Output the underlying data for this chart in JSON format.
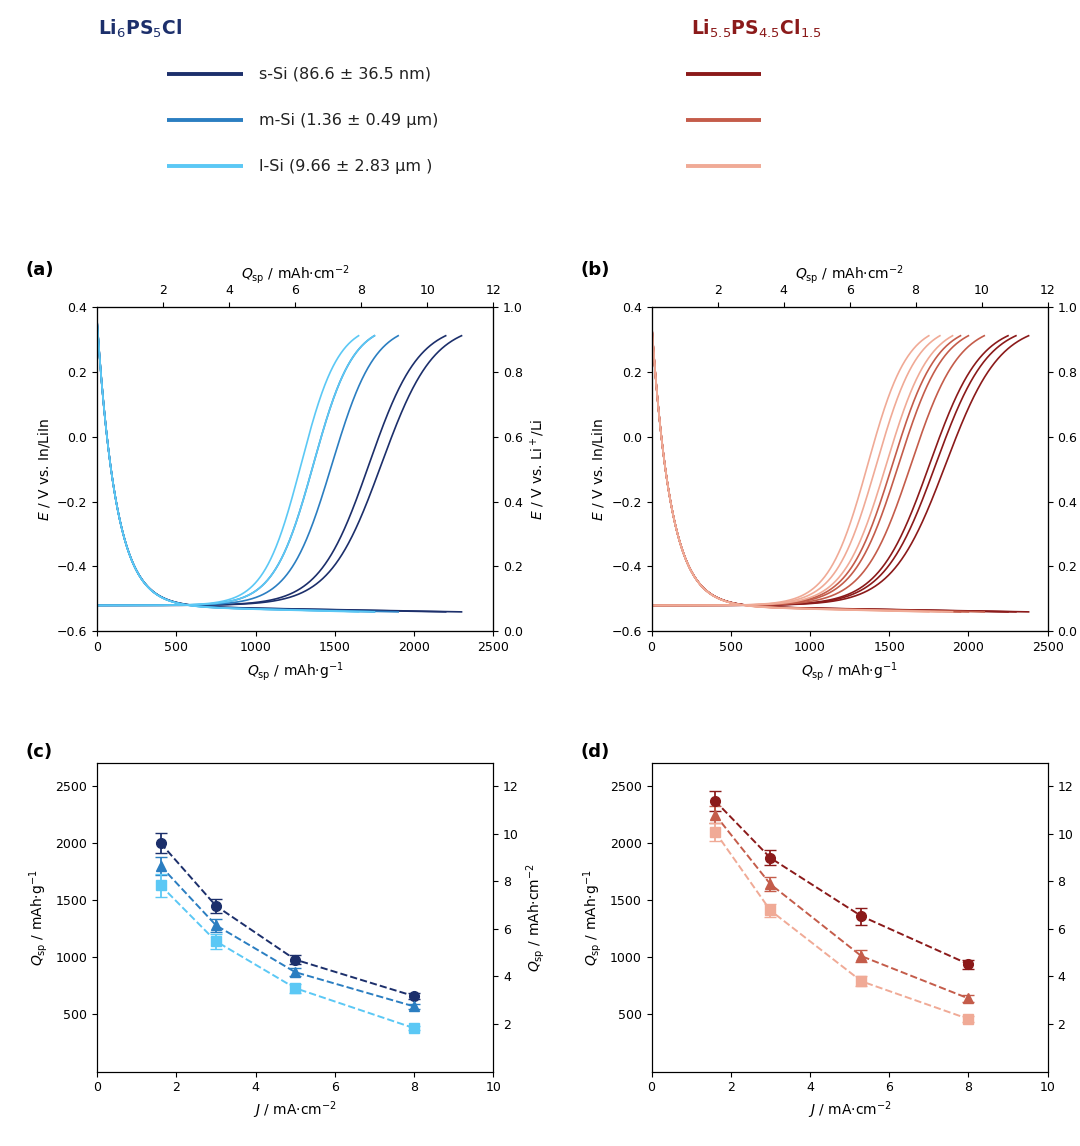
{
  "colors": {
    "dark_blue": "#1c2f6b",
    "mid_blue": "#2b7ec1",
    "light_blue": "#5bc8f5",
    "dark_red": "#8b1a1a",
    "mid_red": "#c45c4a",
    "light_red": "#f0aa96"
  },
  "legend": {
    "labels": [
      "s-Si (86.6 ± 36.5 nm)",
      "m-Si (1.36 ± 0.49 μm)",
      "l-Si (9.66 ± 2.83 μm )"
    ]
  },
  "panel_c": {
    "s_si_blue": {
      "x": [
        1.6,
        3.0,
        5.0,
        8.0
      ],
      "y": [
        2000,
        1450,
        980,
        660
      ],
      "yerr": [
        90,
        60,
        40,
        25
      ]
    },
    "m_si_blue": {
      "x": [
        1.6,
        3.0,
        5.0,
        8.0
      ],
      "y": [
        1800,
        1280,
        870,
        570
      ],
      "yerr": [
        80,
        55,
        35,
        22
      ]
    },
    "l_si_blue": {
      "x": [
        1.6,
        3.0,
        5.0,
        8.0
      ],
      "y": [
        1630,
        1140,
        730,
        380
      ],
      "yerr": [
        100,
        65,
        40,
        20
      ]
    }
  },
  "panel_d": {
    "s_si_red": {
      "x": [
        1.6,
        3.0,
        5.3,
        8.0
      ],
      "y": [
        2370,
        1870,
        1360,
        940
      ],
      "yerr": [
        90,
        65,
        75,
        40
      ]
    },
    "m_si_red": {
      "x": [
        1.6,
        3.0,
        5.3,
        8.0
      ],
      "y": [
        2250,
        1640,
        1010,
        640
      ],
      "yerr": [
        75,
        60,
        55,
        30
      ]
    },
    "l_si_red": {
      "x": [
        1.6,
        3.0,
        5.3,
        8.0
      ],
      "y": [
        2100,
        1410,
        790,
        460
      ],
      "yerr": [
        80,
        55,
        45,
        25
      ]
    }
  }
}
